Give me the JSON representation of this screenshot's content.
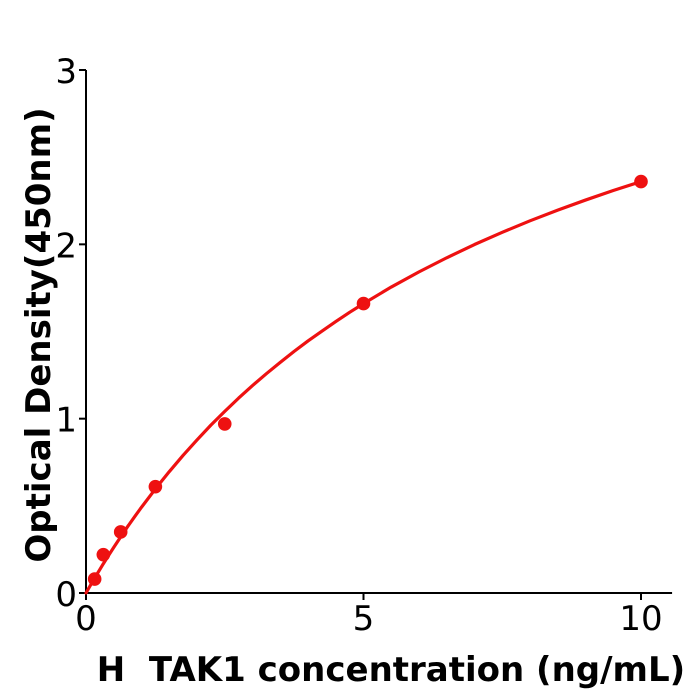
{
  "figure": {
    "background_color": "#ffffff",
    "axis_color": "#000000",
    "accent_color": "#ee1111"
  },
  "chart_data": {
    "type": "scatter",
    "title": "",
    "xlabel": "H  TAK1 concentration (ng/mL)",
    "ylabel": "Optical Density(450nm)",
    "xlim": [
      0,
      10.56
    ],
    "ylim": [
      0,
      3
    ],
    "grid": false,
    "legend_position": "none",
    "x_ticks": [
      {
        "value": 0,
        "label": "0"
      },
      {
        "value": 5,
        "label": "5"
      },
      {
        "value": 10,
        "label": "10"
      }
    ],
    "y_ticks": [
      {
        "value": 0,
        "label": "0"
      },
      {
        "value": 1,
        "label": "1"
      },
      {
        "value": 2,
        "label": "2"
      },
      {
        "value": 3,
        "label": "3"
      }
    ],
    "series": [
      {
        "name": "standard-points",
        "type": "scatter",
        "marker": "circle",
        "marker_radius": 6.8,
        "color": "#ee1111",
        "points": [
          [
            0.156,
            0.08
          ],
          [
            0.3125,
            0.22
          ],
          [
            0.625,
            0.35
          ],
          [
            1.25,
            0.61
          ],
          [
            2.5,
            0.97
          ],
          [
            5,
            1.66
          ],
          [
            10,
            2.36
          ]
        ]
      },
      {
        "name": "fitted-curve",
        "type": "line",
        "color": "#ee1111",
        "stroke_width": 3.2,
        "points": [
          [
            0,
            0
          ],
          [
            0.05,
            0.028
          ],
          [
            0.1,
            0.055
          ],
          [
            0.156,
            0.086
          ],
          [
            0.2,
            0.109
          ],
          [
            0.25,
            0.135
          ],
          [
            0.3125,
            0.168
          ],
          [
            0.4,
            0.212
          ],
          [
            0.5,
            0.262
          ],
          [
            0.625,
            0.322
          ],
          [
            0.75,
            0.381
          ],
          [
            0.875,
            0.437
          ],
          [
            1,
            0.492
          ],
          [
            1.25,
            0.597
          ],
          [
            1.5,
            0.696
          ],
          [
            1.75,
            0.79
          ],
          [
            2,
            0.878
          ],
          [
            2.25,
            0.963
          ],
          [
            2.5,
            1.042
          ],
          [
            2.75,
            1.118
          ],
          [
            3,
            1.19
          ],
          [
            3.25,
            1.258
          ],
          [
            3.5,
            1.323
          ],
          [
            3.75,
            1.386
          ],
          [
            4,
            1.446
          ],
          [
            4.25,
            1.502
          ],
          [
            4.5,
            1.557
          ],
          [
            4.75,
            1.61
          ],
          [
            5,
            1.66
          ],
          [
            5.5,
            1.755
          ],
          [
            6,
            1.842
          ],
          [
            6.5,
            1.923
          ],
          [
            7,
            1.999
          ],
          [
            7.5,
            2.069
          ],
          [
            8,
            2.135
          ],
          [
            8.5,
            2.196
          ],
          [
            9,
            2.254
          ],
          [
            9.5,
            2.309
          ],
          [
            10,
            2.36
          ]
        ]
      }
    ]
  }
}
